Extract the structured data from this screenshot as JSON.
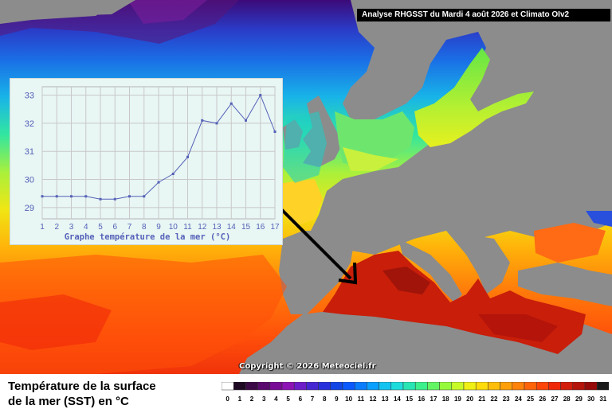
{
  "header": {
    "title": "Analyse RHGSST  du Mardi 4 août 2026 et Climato OIv2"
  },
  "copyright": "Copyright © 2026 Meteociel.fr",
  "footer": {
    "title_line1": "Température de la surface",
    "title_line2": "de la mer (SST) en °C"
  },
  "color_scale": {
    "labels": [
      "0",
      "1",
      "2",
      "3",
      "4",
      "5",
      "6",
      "7",
      "8",
      "9",
      "10",
      "11",
      "12",
      "13",
      "14",
      "15",
      "16",
      "17",
      "18",
      "19",
      "20",
      "21",
      "22",
      "23",
      "24",
      "25",
      "26",
      "27",
      "28",
      "29",
      "30",
      "31"
    ],
    "colors": [
      "#ffffff",
      "#1e0a23",
      "#3c0a46",
      "#5a0a6e",
      "#780a96",
      "#8c14b4",
      "#6e1ec8",
      "#4628d2",
      "#2832dc",
      "#1446e6",
      "#0a5aff",
      "#0a7dff",
      "#0aa0ff",
      "#14c3f0",
      "#1edcdc",
      "#28e6b4",
      "#3cf08c",
      "#64f564",
      "#96fa3c",
      "#c8fa28",
      "#f0f014",
      "#ffdc0a",
      "#ffbe0a",
      "#ffa00a",
      "#ff820a",
      "#ff640a",
      "#ff460a",
      "#f0280a",
      "#d21e0a",
      "#b4140a",
      "#960a0a",
      "#1a1a1a"
    ]
  },
  "chart_data": {
    "type": "line",
    "title": "",
    "xlabel": "Graphe température de la mer (°C)",
    "ylabel": "",
    "x": [
      1,
      2,
      3,
      4,
      5,
      6,
      7,
      8,
      9,
      10,
      11,
      12,
      13,
      14,
      15,
      16,
      17
    ],
    "series": [
      {
        "values": [
          29.4,
          29.4,
          29.4,
          29.4,
          29.3,
          29.3,
          29.4,
          29.4,
          29.9,
          30.2,
          30.8,
          32.1,
          32.0,
          32.7,
          32.1,
          33.0,
          31.7
        ]
      }
    ],
    "ylim": [
      28.6,
      33.3
    ],
    "yticks": [
      29,
      30,
      31,
      32,
      33
    ],
    "xlim": [
      1,
      17
    ],
    "grid": true,
    "line_color": "#5561b8"
  }
}
